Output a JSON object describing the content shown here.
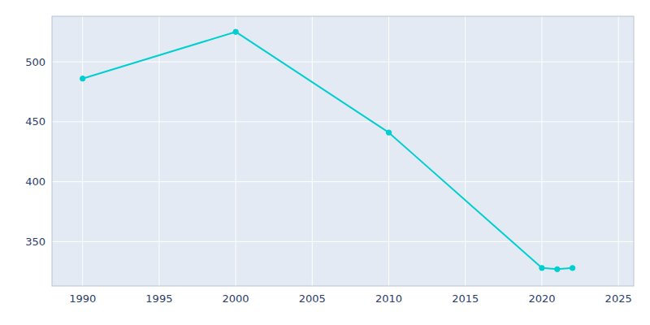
{
  "chart_data": {
    "type": "line",
    "x": [
      1990,
      2000,
      2010,
      2020,
      2021,
      2022
    ],
    "values": [
      486,
      525,
      441,
      328,
      327,
      328
    ],
    "color": "#00CED1",
    "marker": "circle",
    "xlim": [
      1988,
      2026
    ],
    "ylim": [
      313,
      538
    ],
    "xticks": [
      1990,
      1995,
      2000,
      2005,
      2010,
      2015,
      2020,
      2025
    ],
    "yticks": [
      350,
      400,
      450,
      500
    ],
    "grid": true
  }
}
